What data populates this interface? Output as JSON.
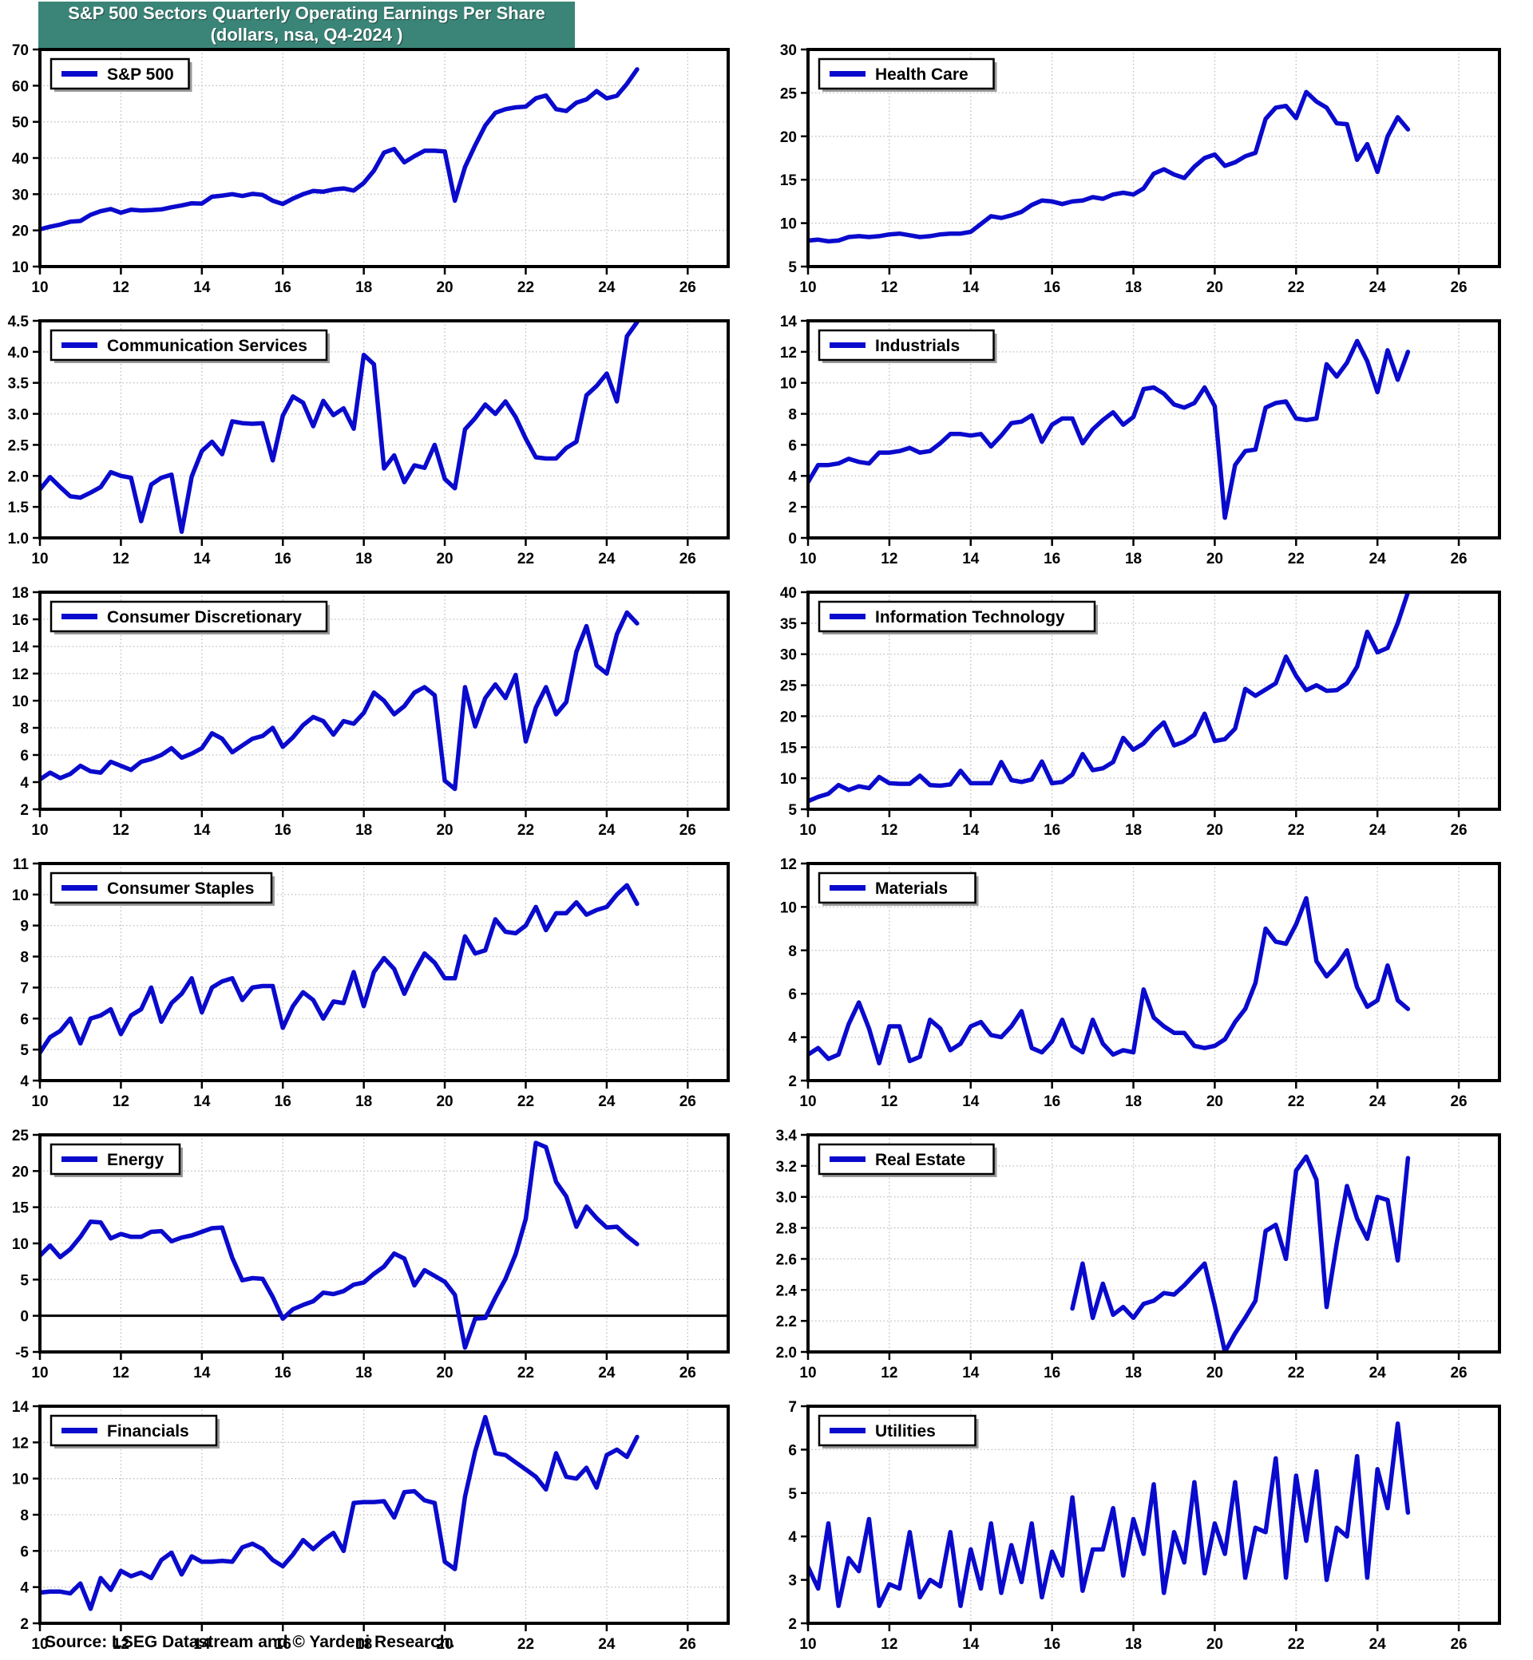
{
  "title": {
    "line1": "S&P 500 Sectors Quarterly Operating Earnings Per Share",
    "line2": "(dollars, nsa, Q4-2024 )"
  },
  "source": "Source: LSEG Datastream and © Yardeni Research.",
  "colors": {
    "banner": "#3A8577",
    "line": "#0A0ACD",
    "grid": "#bdbdbd",
    "axis": "#000000",
    "legend_shadow": "#9a9a9a",
    "background": "#ffffff"
  },
  "x_axis": {
    "range": [
      10,
      27
    ],
    "ticks": [
      10,
      12,
      14,
      16,
      18,
      20,
      22,
      24,
      26
    ],
    "note": "ticks are calendar years 2010-2026, data is quarterly"
  },
  "chart_data": [
    {
      "name": "S&P 500",
      "type": "line",
      "x_start": 10.0,
      "x_step": 0.25,
      "ylim": [
        10,
        70
      ],
      "yticks": [
        10,
        20,
        30,
        40,
        50,
        60,
        70
      ],
      "y_decimals": 0,
      "zero_line": false,
      "values": [
        20.3,
        21.0,
        21.6,
        22.4,
        22.6,
        24.3,
        25.3,
        25.9,
        24.9,
        25.7,
        25.5,
        25.6,
        25.8,
        26.4,
        26.9,
        27.5,
        27.4,
        29.3,
        29.6,
        30.0,
        29.5,
        30.1,
        29.8,
        28.2,
        27.3,
        28.8,
        30.0,
        30.9,
        30.7,
        31.3,
        31.6,
        31.0,
        33.1,
        36.5,
        41.5,
        42.5,
        38.8,
        40.5,
        42.0,
        42.0,
        41.8,
        28.2,
        37.5,
        43.5,
        49.0,
        52.5,
        53.5,
        54.0,
        54.2,
        56.5,
        57.3,
        53.5,
        53.0,
        55.3,
        56.2,
        58.5,
        56.5,
        57.2,
        60.5,
        64.5
      ]
    },
    {
      "name": "Health Care",
      "type": "line",
      "x_start": 10.0,
      "x_step": 0.25,
      "ylim": [
        5,
        30
      ],
      "yticks": [
        5,
        10,
        15,
        20,
        25,
        30
      ],
      "y_decimals": 0,
      "zero_line": false,
      "values": [
        8.0,
        8.1,
        7.9,
        8.0,
        8.4,
        8.5,
        8.4,
        8.5,
        8.7,
        8.8,
        8.6,
        8.4,
        8.5,
        8.7,
        8.8,
        8.8,
        9.0,
        9.9,
        10.8,
        10.6,
        10.9,
        11.3,
        12.1,
        12.6,
        12.5,
        12.2,
        12.5,
        12.6,
        13.0,
        12.8,
        13.3,
        13.5,
        13.3,
        14.0,
        15.7,
        16.2,
        15.6,
        15.2,
        16.5,
        17.5,
        17.9,
        16.6,
        17.0,
        17.7,
        18.1,
        22.0,
        23.3,
        23.5,
        22.1,
        25.1,
        24.0,
        23.3,
        21.5,
        21.4,
        17.3,
        19.1,
        15.9,
        20.0,
        22.2,
        20.8
      ]
    },
    {
      "name": "Communication Services",
      "type": "line",
      "x_start": 10.0,
      "x_step": 0.25,
      "ylim": [
        1.0,
        4.5
      ],
      "yticks": [
        1.0,
        1.5,
        2.0,
        2.5,
        3.0,
        3.5,
        4.0,
        4.5
      ],
      "y_decimals": 1,
      "zero_line": false,
      "values": [
        1.78,
        1.98,
        1.82,
        1.67,
        1.65,
        1.73,
        1.82,
        2.06,
        2.0,
        1.97,
        1.27,
        1.86,
        1.97,
        2.02,
        1.1,
        1.99,
        2.4,
        2.55,
        2.35,
        2.88,
        2.85,
        2.84,
        2.85,
        2.25,
        2.97,
        3.28,
        3.18,
        2.8,
        3.21,
        2.98,
        3.09,
        2.76,
        3.95,
        3.8,
        2.12,
        2.33,
        1.9,
        2.17,
        2.13,
        2.5,
        1.95,
        1.8,
        2.75,
        2.93,
        3.15,
        3.0,
        3.2,
        2.95,
        2.6,
        2.3,
        2.28,
        2.28,
        2.45,
        2.55,
        3.3,
        3.45,
        3.65,
        3.2,
        4.25,
        4.48
      ]
    },
    {
      "name": "Industrials",
      "type": "line",
      "x_start": 10.0,
      "x_step": 0.25,
      "ylim": [
        0,
        14
      ],
      "yticks": [
        0,
        2,
        4,
        6,
        8,
        10,
        12,
        14
      ],
      "y_decimals": 0,
      "zero_line": false,
      "values": [
        3.6,
        4.7,
        4.7,
        4.8,
        5.1,
        4.9,
        4.8,
        5.5,
        5.5,
        5.6,
        5.8,
        5.5,
        5.6,
        6.1,
        6.7,
        6.7,
        6.6,
        6.7,
        5.9,
        6.6,
        7.4,
        7.5,
        7.9,
        6.2,
        7.3,
        7.7,
        7.7,
        6.1,
        7.0,
        7.6,
        8.1,
        7.3,
        7.8,
        9.6,
        9.7,
        9.3,
        8.6,
        8.4,
        8.7,
        9.7,
        8.5,
        1.3,
        4.7,
        5.6,
        5.7,
        8.4,
        8.7,
        8.8,
        7.7,
        7.6,
        7.7,
        11.2,
        10.4,
        11.3,
        12.7,
        11.4,
        9.4,
        12.1,
        10.2,
        12.0
      ]
    },
    {
      "name": "Consumer Discretionary",
      "type": "line",
      "x_start": 10.0,
      "x_step": 0.25,
      "ylim": [
        2,
        18
      ],
      "yticks": [
        2,
        4,
        6,
        8,
        10,
        12,
        14,
        16,
        18
      ],
      "y_decimals": 0,
      "zero_line": false,
      "values": [
        4.2,
        4.7,
        4.3,
        4.6,
        5.2,
        4.8,
        4.7,
        5.5,
        5.2,
        4.9,
        5.5,
        5.7,
        6.0,
        6.5,
        5.8,
        6.1,
        6.5,
        7.6,
        7.2,
        6.2,
        6.7,
        7.2,
        7.4,
        8.0,
        6.6,
        7.3,
        8.2,
        8.8,
        8.5,
        7.5,
        8.5,
        8.3,
        9.1,
        10.6,
        10.0,
        9.0,
        9.6,
        10.6,
        11.0,
        10.4,
        4.1,
        3.5,
        11.0,
        8.1,
        10.2,
        11.2,
        10.2,
        11.9,
        7.0,
        9.5,
        11.0,
        9.0,
        9.9,
        13.6,
        15.5,
        12.6,
        12.0,
        14.9,
        16.5,
        15.7
      ]
    },
    {
      "name": "Information Technology",
      "type": "line",
      "x_start": 10.0,
      "x_step": 0.25,
      "ylim": [
        5,
        40
      ],
      "yticks": [
        5,
        10,
        15,
        20,
        25,
        30,
        35,
        40
      ],
      "y_decimals": 0,
      "zero_line": false,
      "values": [
        6.3,
        7.0,
        7.5,
        8.9,
        8.1,
        8.7,
        8.4,
        10.2,
        9.2,
        9.1,
        9.1,
        10.4,
        8.9,
        8.8,
        9.0,
        11.2,
        9.2,
        9.2,
        9.2,
        12.6,
        9.7,
        9.4,
        9.8,
        12.7,
        9.2,
        9.4,
        10.6,
        13.9,
        11.3,
        11.6,
        12.6,
        16.5,
        14.6,
        15.6,
        17.5,
        19.0,
        15.3,
        15.9,
        17.0,
        20.4,
        16.0,
        16.3,
        18.0,
        24.4,
        23.3,
        24.3,
        25.3,
        29.6,
        26.5,
        24.2,
        25.0,
        24.1,
        24.2,
        25.3,
        28.0,
        33.6,
        30.3,
        31.0,
        35.0,
        40.0
      ]
    },
    {
      "name": "Consumer Staples",
      "type": "line",
      "x_start": 10.0,
      "x_step": 0.25,
      "ylim": [
        4,
        11
      ],
      "yticks": [
        4,
        5,
        6,
        7,
        8,
        9,
        10,
        11
      ],
      "y_decimals": 0,
      "zero_line": false,
      "values": [
        4.9,
        5.4,
        5.6,
        6.0,
        5.2,
        6.0,
        6.1,
        6.3,
        5.5,
        6.1,
        6.3,
        7.0,
        5.9,
        6.5,
        6.8,
        7.3,
        6.2,
        7.0,
        7.2,
        7.3,
        6.6,
        7.0,
        7.05,
        7.05,
        5.7,
        6.4,
        6.85,
        6.6,
        6.0,
        6.55,
        6.5,
        7.5,
        6.4,
        7.5,
        7.95,
        7.6,
        6.8,
        7.5,
        8.1,
        7.8,
        7.3,
        7.3,
        8.65,
        8.1,
        8.2,
        9.2,
        8.8,
        8.75,
        9.0,
        9.6,
        8.85,
        9.4,
        9.4,
        9.75,
        9.35,
        9.5,
        9.6,
        10.0,
        10.3,
        9.7
      ]
    },
    {
      "name": "Materials",
      "type": "line",
      "x_start": 10.0,
      "x_step": 0.25,
      "ylim": [
        2,
        12
      ],
      "yticks": [
        2,
        4,
        6,
        8,
        10,
        12
      ],
      "y_decimals": 0,
      "zero_line": false,
      "values": [
        3.2,
        3.5,
        3.0,
        3.2,
        4.6,
        5.6,
        4.4,
        2.8,
        4.5,
        4.5,
        2.9,
        3.1,
        4.8,
        4.4,
        3.4,
        3.7,
        4.5,
        4.7,
        4.1,
        4.0,
        4.5,
        5.2,
        3.5,
        3.3,
        3.8,
        4.8,
        3.6,
        3.3,
        4.8,
        3.7,
        3.2,
        3.4,
        3.3,
        6.2,
        4.9,
        4.5,
        4.2,
        4.2,
        3.6,
        3.5,
        3.6,
        3.9,
        4.7,
        5.3,
        6.5,
        9.0,
        8.4,
        8.3,
        9.2,
        10.4,
        7.5,
        6.8,
        7.3,
        8.0,
        6.3,
        5.4,
        5.7,
        7.3,
        5.7,
        5.3
      ]
    },
    {
      "name": "Energy",
      "type": "line",
      "x_start": 10.0,
      "x_step": 0.25,
      "ylim": [
        -5,
        25
      ],
      "yticks": [
        -5,
        0,
        5,
        10,
        15,
        20,
        25
      ],
      "y_decimals": 0,
      "zero_line": true,
      "values": [
        8.3,
        9.7,
        8.1,
        9.2,
        10.9,
        13.0,
        12.9,
        10.7,
        11.3,
        10.9,
        10.9,
        11.6,
        11.7,
        10.3,
        10.8,
        11.1,
        11.6,
        12.1,
        12.2,
        8.0,
        4.9,
        5.2,
        5.1,
        2.6,
        -0.4,
        0.9,
        1.5,
        2.0,
        3.2,
        3.0,
        3.4,
        4.3,
        4.6,
        5.8,
        6.8,
        8.6,
        7.9,
        4.2,
        6.3,
        5.5,
        4.7,
        2.9,
        -4.4,
        -0.4,
        -0.3,
        2.5,
        5.1,
        8.5,
        13.4,
        23.9,
        23.3,
        18.5,
        16.5,
        12.3,
        15.1,
        13.5,
        12.2,
        12.3,
        11.0,
        9.9
      ]
    },
    {
      "name": "Real Estate",
      "type": "line",
      "x_start": 16.5,
      "x_step": 0.25,
      "ylim": [
        2.0,
        3.4
      ],
      "yticks": [
        2.0,
        2.2,
        2.4,
        2.6,
        2.8,
        3.0,
        3.2,
        3.4
      ],
      "y_decimals": 1,
      "zero_line": false,
      "values": [
        2.28,
        2.57,
        2.22,
        2.44,
        2.24,
        2.29,
        2.22,
        2.31,
        2.33,
        2.38,
        2.37,
        2.43,
        2.5,
        2.57,
        2.3,
        2.0,
        2.12,
        2.22,
        2.33,
        2.78,
        2.82,
        2.6,
        3.17,
        3.26,
        3.11,
        2.29,
        2.7,
        3.07,
        2.86,
        2.73,
        3.0,
        2.98,
        2.59,
        3.25
      ]
    },
    {
      "name": "Financials",
      "type": "line",
      "x_start": 10.0,
      "x_step": 0.25,
      "ylim": [
        2,
        14
      ],
      "yticks": [
        2,
        4,
        6,
        8,
        10,
        12,
        14
      ],
      "y_decimals": 0,
      "zero_line": false,
      "values": [
        3.7,
        3.75,
        3.75,
        3.65,
        4.2,
        2.8,
        4.5,
        3.85,
        4.9,
        4.6,
        4.8,
        4.5,
        5.5,
        5.9,
        4.7,
        5.7,
        5.4,
        5.4,
        5.45,
        5.4,
        6.2,
        6.4,
        6.1,
        5.5,
        5.15,
        5.8,
        6.6,
        6.1,
        6.6,
        7.0,
        6.0,
        8.65,
        8.7,
        8.7,
        8.75,
        7.85,
        9.25,
        9.3,
        8.8,
        8.65,
        5.4,
        5.0,
        9.0,
        11.5,
        13.4,
        11.4,
        11.3,
        10.9,
        10.5,
        10.1,
        9.4,
        11.4,
        10.1,
        10.0,
        10.6,
        9.5,
        11.3,
        11.6,
        11.2,
        12.3
      ]
    },
    {
      "name": "Utilities",
      "type": "line",
      "x_start": 10.0,
      "x_step": 0.25,
      "ylim": [
        2,
        7
      ],
      "yticks": [
        2,
        3,
        4,
        5,
        6,
        7
      ],
      "y_decimals": 0,
      "zero_line": false,
      "values": [
        3.3,
        2.8,
        4.3,
        2.4,
        3.5,
        3.2,
        4.4,
        2.4,
        2.9,
        2.8,
        4.1,
        2.6,
        3.0,
        2.85,
        4.1,
        2.4,
        3.7,
        2.8,
        4.3,
        2.7,
        3.8,
        2.95,
        4.3,
        2.6,
        3.65,
        3.1,
        4.9,
        2.75,
        3.7,
        3.7,
        4.65,
        3.1,
        4.4,
        3.6,
        5.2,
        2.7,
        4.1,
        3.4,
        5.25,
        3.15,
        4.3,
        3.6,
        5.25,
        3.05,
        4.2,
        4.1,
        5.8,
        3.05,
        5.4,
        3.9,
        5.5,
        3.0,
        4.2,
        4.0,
        5.85,
        3.05,
        5.55,
        4.65,
        6.6,
        4.55
      ]
    }
  ]
}
